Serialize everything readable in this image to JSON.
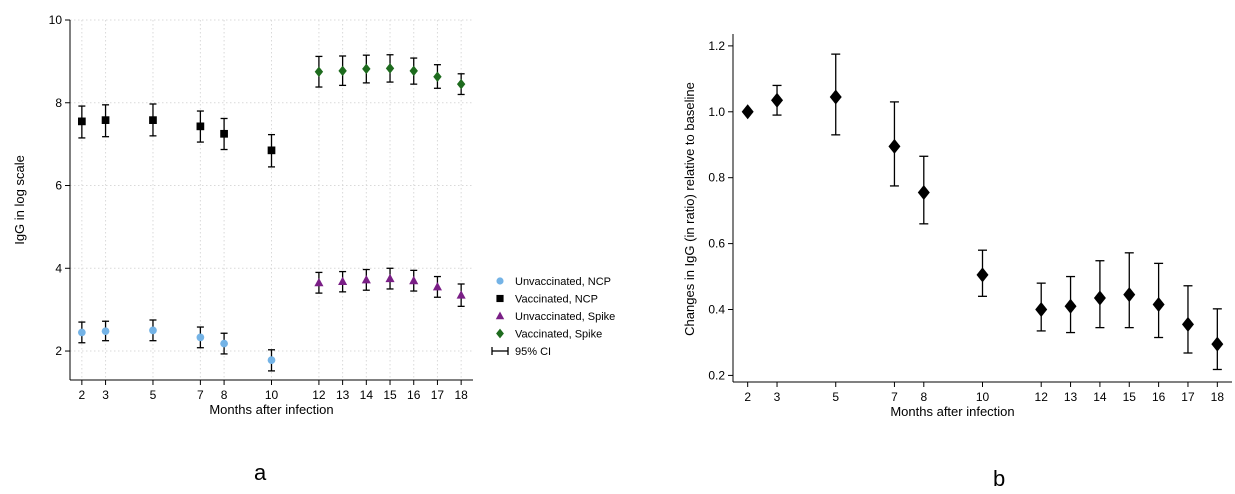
{
  "panel_labels": {
    "a": "a",
    "b": "b"
  },
  "colors": {
    "unvacc_ncp": "#74b3e6",
    "vacc_ncp": "#000000",
    "unvacc_spike": "#7a1f86",
    "vacc_spike": "#1e6b1e",
    "errorbar": "#000000",
    "axis": "#000000",
    "grid": "#d9d9d9"
  },
  "chart_data": [
    {
      "type": "scatter",
      "panel": "a",
      "title": "",
      "xlabel": "Months after infection",
      "ylabel": "IgG in log scale",
      "xticks": [
        2,
        3,
        5,
        7,
        8,
        10,
        12,
        13,
        14,
        15,
        16,
        17,
        18
      ],
      "yticks": [
        2,
        4,
        6,
        8,
        10
      ],
      "xlim": [
        1.5,
        18.5
      ],
      "ylim": [
        1.3,
        10
      ],
      "grid": true,
      "legend_position": "right",
      "legend_ci_label": "95% CI",
      "series": [
        {
          "name": "Unvaccinated, NCP",
          "marker": "circle",
          "color_key": "unvacc_ncp",
          "points": [
            {
              "x": 2,
              "y": 2.45,
              "lo": 2.2,
              "hi": 2.7
            },
            {
              "x": 3,
              "y": 2.48,
              "lo": 2.25,
              "hi": 2.72
            },
            {
              "x": 5,
              "y": 2.5,
              "lo": 2.25,
              "hi": 2.75
            },
            {
              "x": 7,
              "y": 2.33,
              "lo": 2.08,
              "hi": 2.58
            },
            {
              "x": 8,
              "y": 2.18,
              "lo": 1.93,
              "hi": 2.43
            },
            {
              "x": 10,
              "y": 1.78,
              "lo": 1.52,
              "hi": 2.03
            }
          ]
        },
        {
          "name": "Vaccinated, NCP",
          "marker": "square",
          "color_key": "vacc_ncp",
          "points": [
            {
              "x": 2,
              "y": 7.55,
              "lo": 7.15,
              "hi": 7.92
            },
            {
              "x": 3,
              "y": 7.58,
              "lo": 7.18,
              "hi": 7.95
            },
            {
              "x": 5,
              "y": 7.58,
              "lo": 7.2,
              "hi": 7.97
            },
            {
              "x": 7,
              "y": 7.43,
              "lo": 7.05,
              "hi": 7.8
            },
            {
              "x": 8,
              "y": 7.25,
              "lo": 6.87,
              "hi": 7.62
            },
            {
              "x": 10,
              "y": 6.85,
              "lo": 6.45,
              "hi": 7.23
            }
          ]
        },
        {
          "name": "Unvaccinated, Spike",
          "marker": "triangle",
          "color_key": "unvacc_spike",
          "points": [
            {
              "x": 12,
              "y": 3.65,
              "lo": 3.4,
              "hi": 3.9
            },
            {
              "x": 13,
              "y": 3.68,
              "lo": 3.43,
              "hi": 3.92
            },
            {
              "x": 14,
              "y": 3.72,
              "lo": 3.47,
              "hi": 3.97
            },
            {
              "x": 15,
              "y": 3.75,
              "lo": 3.5,
              "hi": 4.0
            },
            {
              "x": 16,
              "y": 3.7,
              "lo": 3.45,
              "hi": 3.95
            },
            {
              "x": 17,
              "y": 3.55,
              "lo": 3.3,
              "hi": 3.8
            },
            {
              "x": 18,
              "y": 3.35,
              "lo": 3.08,
              "hi": 3.62
            }
          ]
        },
        {
          "name": "Vaccinated, Spike",
          "marker": "diamond",
          "color_key": "vacc_spike",
          "points": [
            {
              "x": 12,
              "y": 8.75,
              "lo": 8.38,
              "hi": 9.12
            },
            {
              "x": 13,
              "y": 8.77,
              "lo": 8.42,
              "hi": 9.13
            },
            {
              "x": 14,
              "y": 8.82,
              "lo": 8.48,
              "hi": 9.15
            },
            {
              "x": 15,
              "y": 8.83,
              "lo": 8.5,
              "hi": 9.16
            },
            {
              "x": 16,
              "y": 8.77,
              "lo": 8.45,
              "hi": 9.08
            },
            {
              "x": 17,
              "y": 8.63,
              "lo": 8.35,
              "hi": 8.92
            },
            {
              "x": 18,
              "y": 8.45,
              "lo": 8.2,
              "hi": 8.7
            }
          ]
        }
      ]
    },
    {
      "type": "scatter",
      "panel": "b",
      "title": "",
      "xlabel": "Months after infection",
      "ylabel": "Changes in IgG (in ratio) relative to baseline",
      "xticks": [
        2,
        3,
        5,
        7,
        8,
        10,
        12,
        13,
        14,
        15,
        16,
        17,
        18
      ],
      "yticks": [
        0.2,
        0.4,
        0.6,
        0.8,
        1.0,
        1.2
      ],
      "xlim": [
        1.5,
        18.5
      ],
      "ylim": [
        0.18,
        1.23
      ],
      "grid": false,
      "series": [
        {
          "name": "",
          "marker": "diamond",
          "color_key": "vacc_ncp",
          "points": [
            {
              "x": 2,
              "y": 1.0,
              "lo": 1.0,
              "hi": 1.0
            },
            {
              "x": 3,
              "y": 1.035,
              "lo": 0.99,
              "hi": 1.08
            },
            {
              "x": 5,
              "y": 1.045,
              "lo": 0.93,
              "hi": 1.175
            },
            {
              "x": 7,
              "y": 0.895,
              "lo": 0.775,
              "hi": 1.03
            },
            {
              "x": 8,
              "y": 0.755,
              "lo": 0.66,
              "hi": 0.865
            },
            {
              "x": 10,
              "y": 0.505,
              "lo": 0.44,
              "hi": 0.58
            },
            {
              "x": 12,
              "y": 0.4,
              "lo": 0.335,
              "hi": 0.48
            },
            {
              "x": 13,
              "y": 0.41,
              "lo": 0.33,
              "hi": 0.5
            },
            {
              "x": 14,
              "y": 0.435,
              "lo": 0.345,
              "hi": 0.548
            },
            {
              "x": 15,
              "y": 0.445,
              "lo": 0.345,
              "hi": 0.572
            },
            {
              "x": 16,
              "y": 0.415,
              "lo": 0.315,
              "hi": 0.54
            },
            {
              "x": 17,
              "y": 0.355,
              "lo": 0.268,
              "hi": 0.472
            },
            {
              "x": 18,
              "y": 0.295,
              "lo": 0.218,
              "hi": 0.402
            }
          ]
        }
      ]
    }
  ]
}
